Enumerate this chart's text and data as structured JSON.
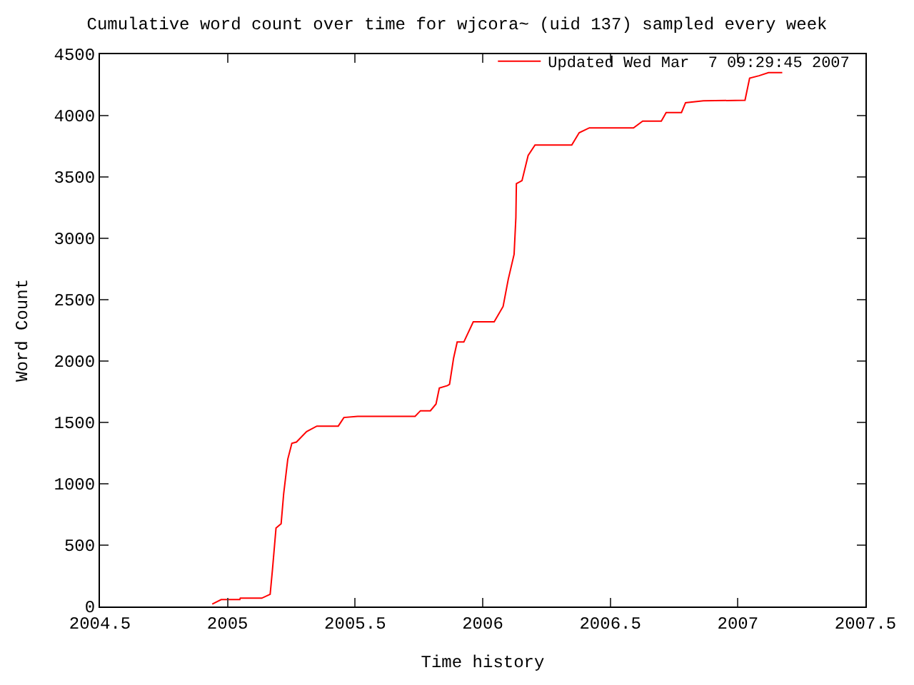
{
  "chart_data": {
    "type": "line",
    "title": "Cumulative word count over time for wjcora~ (uid 137) sampled every week",
    "xlabel": "Time history",
    "ylabel": "Word Count",
    "xlim": [
      2004.5,
      2007.5
    ],
    "xticks": [
      2004.5,
      2005,
      2005.5,
      2006,
      2006.5,
      2007,
      2007.5
    ],
    "ylim": [
      0,
      4500
    ],
    "yticks": [
      0,
      500,
      1000,
      1500,
      2000,
      2500,
      3000,
      3500,
      4000,
      4500
    ],
    "legend": "top right",
    "series": [
      {
        "name": "Updated Wed Mar  7 09:29:45 2007",
        "color": "#ff0000",
        "x": [
          2004.94,
          2004.975,
          2005.048,
          2005.05,
          2005.134,
          2005.167,
          2005.176,
          2005.19,
          2005.21,
          2005.22,
          2005.236,
          2005.252,
          2005.27,
          2005.31,
          2005.35,
          2005.434,
          2005.456,
          2005.51,
          2005.735,
          2005.756,
          2005.795,
          2005.817,
          2005.83,
          2005.862,
          2005.87,
          2005.886,
          2005.9,
          2005.926,
          2005.963,
          2006.045,
          2006.08,
          2006.1,
          2006.123,
          2006.13,
          2006.132,
          2006.154,
          2006.178,
          2006.205,
          2006.349,
          2006.378,
          2006.418,
          2006.591,
          2006.627,
          2006.7,
          2006.719,
          2006.779,
          2006.795,
          2006.865,
          2007.028,
          2007.046,
          2007.083,
          2007.12,
          2007.174
        ],
        "values": [
          20,
          56,
          56,
          68,
          68,
          100,
          300,
          640,
          675,
          920,
          1200,
          1330,
          1340,
          1425,
          1470,
          1470,
          1540,
          1550,
          1550,
          1595,
          1595,
          1650,
          1780,
          1800,
          1810,
          2025,
          2155,
          2155,
          2320,
          2320,
          2445,
          2665,
          2870,
          3170,
          3445,
          3470,
          3675,
          3760,
          3760,
          3860,
          3900,
          3900,
          3955,
          3955,
          4025,
          4025,
          4105,
          4120,
          4125,
          4305,
          4325,
          4350,
          4350
        ]
      }
    ]
  }
}
